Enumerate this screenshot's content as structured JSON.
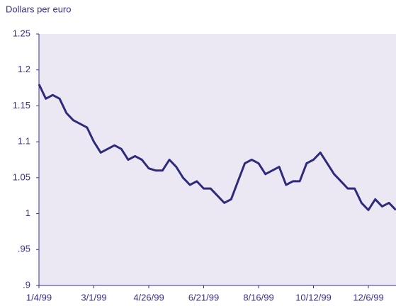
{
  "chart_data": {
    "type": "line",
    "title": "Dollars per euro",
    "categories": [
      "1/4/99",
      null,
      null,
      null,
      null,
      null,
      null,
      null,
      "3/1/99",
      null,
      null,
      null,
      null,
      null,
      null,
      null,
      "4/26/99",
      null,
      null,
      null,
      null,
      null,
      null,
      null,
      "6/21/99",
      null,
      null,
      null,
      null,
      null,
      null,
      null,
      "8/16/99",
      null,
      null,
      null,
      null,
      null,
      null,
      null,
      "10/12/99",
      null,
      null,
      null,
      null,
      null,
      null,
      null,
      "12/6/99",
      null,
      null,
      null,
      null
    ],
    "series": [
      {
        "name": "Dollars per euro",
        "color": "#2e2a7c",
        "values": [
          1.18,
          1.16,
          1.165,
          1.16,
          1.14,
          1.13,
          1.125,
          1.12,
          1.1,
          1.085,
          1.09,
          1.095,
          1.09,
          1.075,
          1.08,
          1.075,
          1.063,
          1.06,
          1.06,
          1.075,
          1.065,
          1.05,
          1.04,
          1.045,
          1.035,
          1.035,
          1.025,
          1.015,
          1.02,
          1.045,
          1.07,
          1.075,
          1.07,
          1.055,
          1.06,
          1.065,
          1.04,
          1.045,
          1.045,
          1.07,
          1.075,
          1.085,
          1.07,
          1.055,
          1.045,
          1.035,
          1.035,
          1.015,
          1.005,
          1.02,
          1.01,
          1.015,
          1.005
        ]
      }
    ],
    "ylim": [
      0.9,
      1.25
    ],
    "yticks": [
      {
        "value": 0.9,
        "label": ".9"
      },
      {
        "value": 0.95,
        "label": ".95"
      },
      1,
      1.05,
      1.1,
      1.15,
      1.2,
      1.25
    ],
    "background": "#ece8f3"
  }
}
